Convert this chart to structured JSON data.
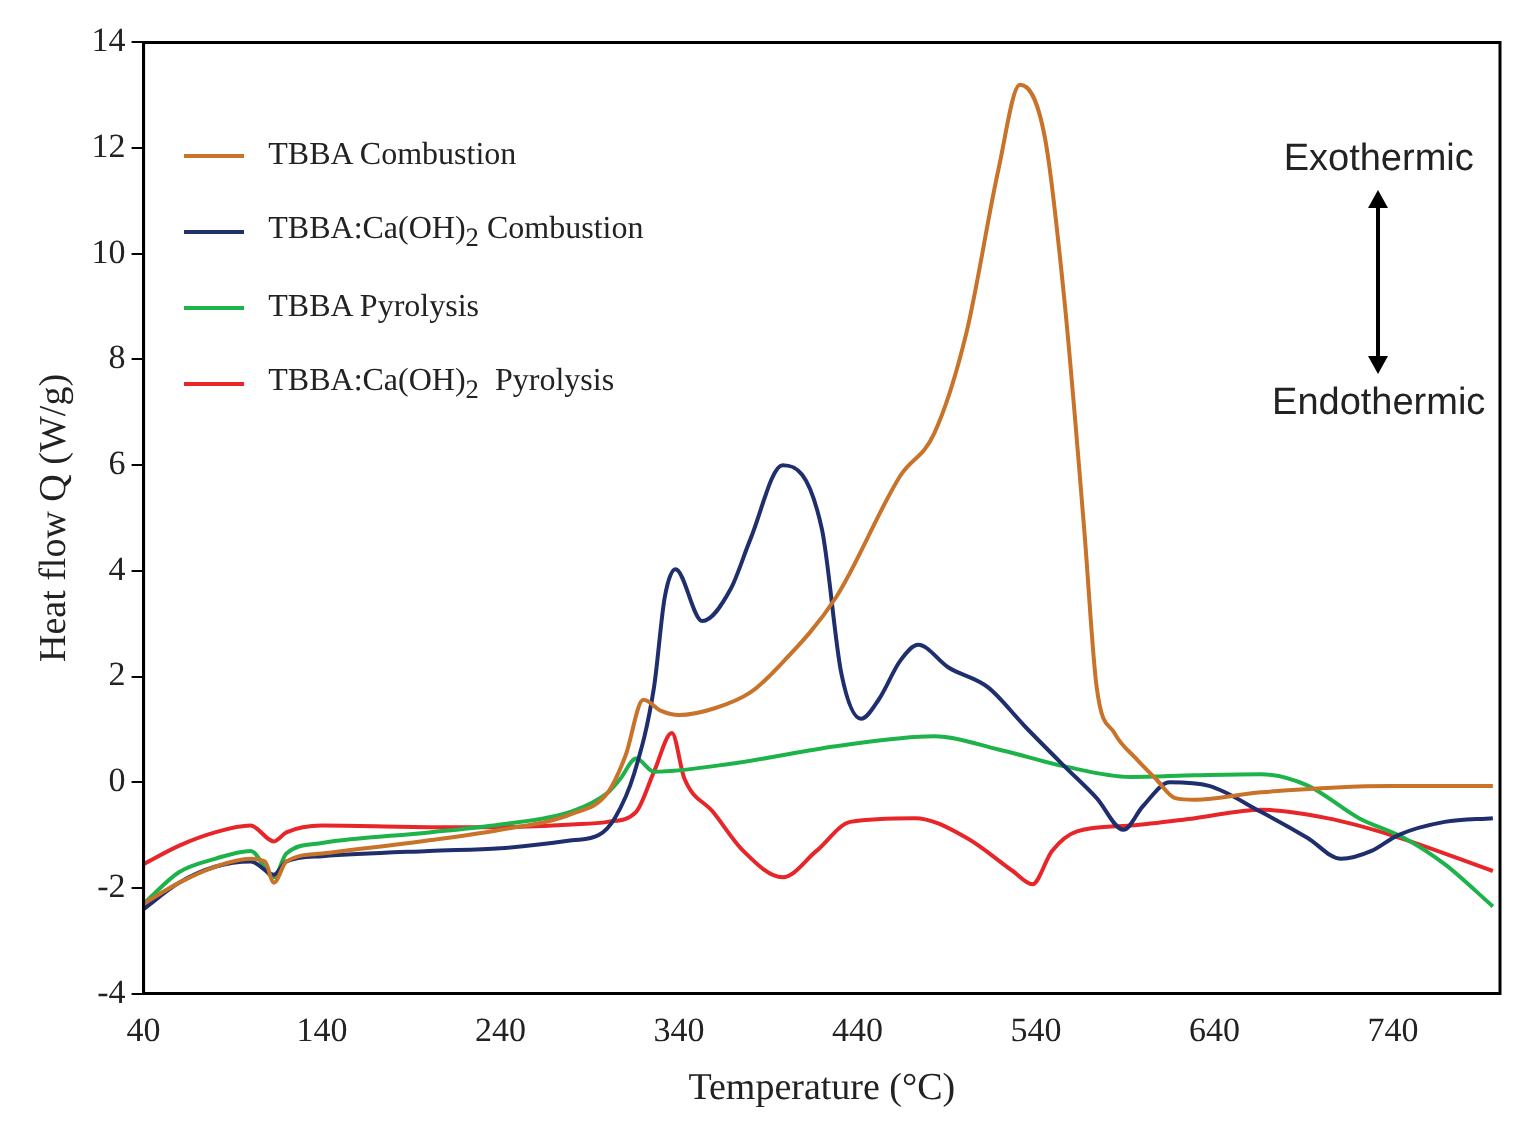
{
  "chart_data": {
    "type": "line",
    "xlabel": "Temperature (°C)",
    "ylabel": "Heat flow Q (W/g)",
    "xlim": [
      40,
      800
    ],
    "xticks": [
      40,
      140,
      240,
      340,
      440,
      540,
      640,
      740
    ],
    "ylim": [
      -4,
      14
    ],
    "yticks": [
      -4,
      -2,
      0,
      2,
      4,
      6,
      8,
      10,
      12,
      14
    ],
    "grid": false,
    "legend": "top left",
    "marker": "none",
    "line_style": "solid",
    "annotations": [
      "Exothermic",
      "Endothermic"
    ],
    "series": [
      {
        "name": "TBBA Combustion",
        "color": "#c8722a",
        "x": [
          40,
          60,
          80,
          100,
          108,
          113,
          120,
          140,
          200,
          240,
          280,
          300,
          310,
          320,
          330,
          340,
          360,
          380,
          395,
          428,
          464,
          483,
          501,
          519,
          531,
          545,
          556,
          567,
          574,
          584,
          596,
          607,
          618,
          629,
          666,
          739,
          796
        ],
        "values": [
          -2.3,
          -1.9,
          -1.6,
          -1.45,
          -1.5,
          -1.9,
          -1.5,
          -1.35,
          -1.1,
          -0.9,
          -0.6,
          -0.2,
          0.5,
          1.56,
          1.35,
          1.27,
          1.4,
          1.7,
          2.16,
          3.5,
          5.8,
          6.6,
          8.5,
          11.6,
          13.2,
          12.2,
          9.1,
          4.8,
          1.8,
          0.93,
          0.45,
          0.07,
          -0.3,
          -0.33,
          -0.19,
          -0.07,
          -0.07
        ]
      },
      {
        "name": "TBBA:Ca(OH)$_{2}$ Combustion",
        "color": "#1f2f6e",
        "x": [
          40,
          60,
          80,
          100,
          113,
          120,
          140,
          200,
          240,
          280,
          295,
          304,
          315,
          326,
          332,
          338,
          353,
          369,
          380,
          398,
          420,
          431,
          442,
          452,
          464,
          474,
          491,
          513,
          534,
          556,
          574,
          589,
          600,
          615,
          637,
          666,
          692,
          711,
          728,
          743,
          769,
          796
        ],
        "values": [
          -2.4,
          -1.9,
          -1.6,
          -1.5,
          -1.75,
          -1.5,
          -1.4,
          -1.3,
          -1.25,
          -1.1,
          -1.0,
          -0.68,
          0.18,
          1.8,
          3.5,
          4.03,
          3.05,
          3.66,
          4.6,
          6.0,
          4.8,
          2.05,
          1.2,
          1.57,
          2.3,
          2.6,
          2.17,
          1.8,
          1.05,
          0.3,
          -0.3,
          -0.9,
          -0.45,
          0.0,
          -0.07,
          -0.56,
          -1.05,
          -1.45,
          -1.3,
          -1.0,
          -0.75,
          -0.68
        ]
      },
      {
        "name": "TBBA Pyrolysis",
        "color": "#1db34a",
        "x": [
          40,
          60,
          80,
          100,
          113,
          120,
          140,
          200,
          240,
          280,
          300,
          307,
          316,
          326,
          373,
          428,
          483,
          519,
          556,
          593,
          629,
          666,
          692,
          721,
          746,
          769,
          796
        ],
        "values": [
          -2.3,
          -1.7,
          -1.45,
          -1.3,
          -1.8,
          -1.35,
          -1.15,
          -0.95,
          -0.8,
          -0.55,
          -0.2,
          0.06,
          0.45,
          0.2,
          0.37,
          0.68,
          0.87,
          0.62,
          0.3,
          0.1,
          0.13,
          0.15,
          -0.06,
          -0.68,
          -1.05,
          -1.55,
          -2.35
        ]
      },
      {
        "name": "TBBA:Ca(OH)$_{2}$  Pyrolysis",
        "color": "#e8262a",
        "x": [
          40,
          60,
          80,
          100,
          113,
          120,
          140,
          200,
          240,
          280,
          300,
          316,
          326,
          336,
          343,
          359,
          376,
          398,
          417,
          436,
          472,
          501,
          527,
          538,
          549,
          563,
          593,
          629,
          666,
          703,
          739,
          796
        ],
        "values": [
          -1.55,
          -1.2,
          -0.95,
          -0.82,
          -1.12,
          -0.95,
          -0.82,
          -0.85,
          -0.85,
          -0.8,
          -0.75,
          -0.56,
          0.2,
          0.93,
          0.07,
          -0.56,
          -1.3,
          -1.8,
          -1.3,
          -0.75,
          -0.68,
          -1.05,
          -1.68,
          -1.93,
          -1.3,
          -0.93,
          -0.82,
          -0.68,
          -0.52,
          -0.68,
          -1.0,
          -1.68
        ]
      }
    ]
  }
}
